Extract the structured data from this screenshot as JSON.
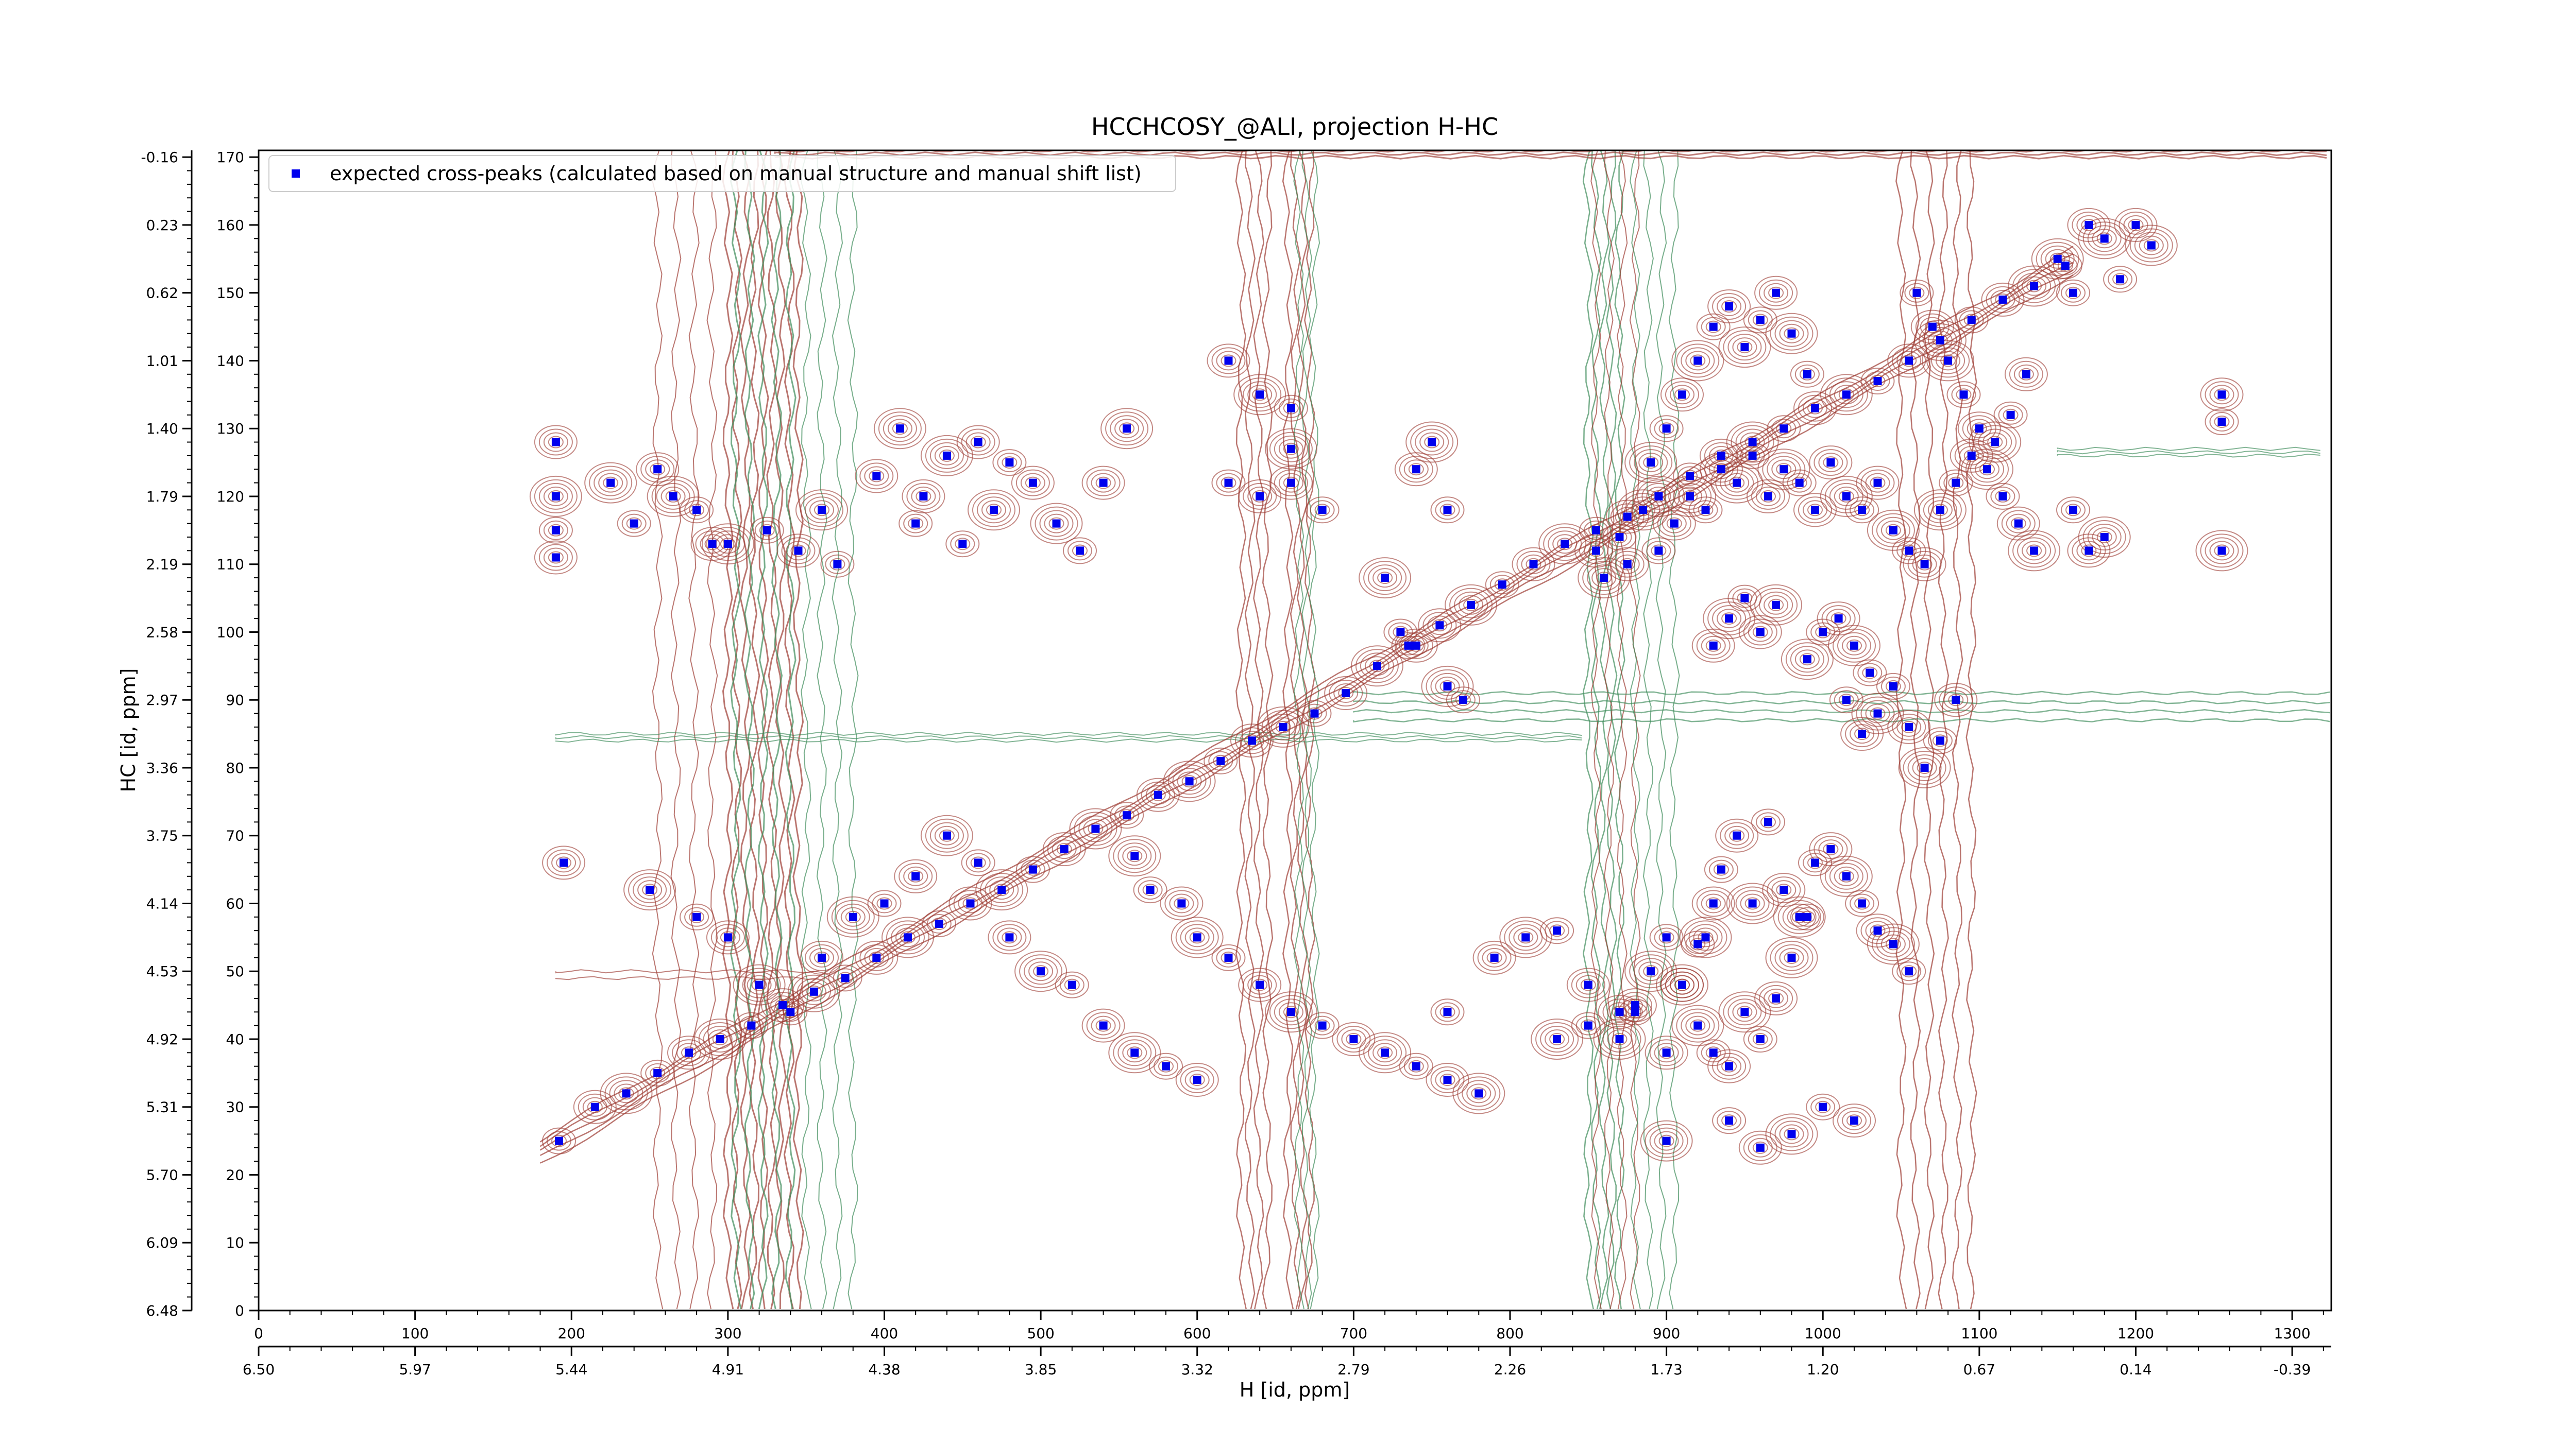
{
  "chart_data": {
    "type": "scatter",
    "title": "HCCHCOSY_@ALI, projection H-HC",
    "xlabel": "H [id, ppm]",
    "ylabel": "HC [id, ppm]",
    "xlim": [
      0,
      1325
    ],
    "ylim": [
      0,
      171
    ],
    "x_ticks": [
      "0",
      "100",
      "200",
      "300",
      "400",
      "500",
      "600",
      "700",
      "800",
      "900",
      "1000",
      "1100",
      "1200",
      "1300"
    ],
    "x_ppm_ticks": [
      "6.50",
      "5.97",
      "5.44",
      "4.91",
      "4.38",
      "3.85",
      "3.32",
      "2.79",
      "2.26",
      "1.73",
      "1.20",
      "0.67",
      "0.14",
      "-0.39"
    ],
    "y_ticks": [
      "0",
      "10",
      "20",
      "30",
      "40",
      "50",
      "60",
      "70",
      "80",
      "90",
      "100",
      "110",
      "120",
      "130",
      "140",
      "150",
      "160",
      "170"
    ],
    "y_ppm_ticks": [
      "6.48",
      "6.09",
      "5.70",
      "5.31",
      "4.92",
      "4.53",
      "4.14",
      "3.75",
      "3.36",
      "2.97",
      "2.58",
      "2.19",
      "1.79",
      "1.40",
      "1.01",
      "0.62",
      "0.23",
      "-0.16"
    ],
    "legend": {
      "placement": "top-left",
      "entries": [
        "expected cross-peaks (calculated based on manual structure and manual shift list)"
      ]
    },
    "grid": false,
    "colors": {
      "peaks": "#0000ee",
      "positive_contours": "#9c3a32",
      "negative_contours": "#3d8c5a"
    },
    "series": [
      {
        "name": "expected cross-peaks (calculated based on manual structure and manual shift list)",
        "points": [
          [
            192,
            25
          ],
          [
            215,
            30
          ],
          [
            235,
            32
          ],
          [
            255,
            35
          ],
          [
            275,
            38
          ],
          [
            295,
            40
          ],
          [
            315,
            42
          ],
          [
            335,
            45
          ],
          [
            355,
            47
          ],
          [
            375,
            49
          ],
          [
            395,
            52
          ],
          [
            415,
            55
          ],
          [
            435,
            57
          ],
          [
            455,
            60
          ],
          [
            475,
            62
          ],
          [
            495,
            65
          ],
          [
            515,
            68
          ],
          [
            535,
            71
          ],
          [
            555,
            73
          ],
          [
            575,
            76
          ],
          [
            595,
            78
          ],
          [
            615,
            81
          ],
          [
            635,
            84
          ],
          [
            655,
            86
          ],
          [
            675,
            88
          ],
          [
            695,
            91
          ],
          [
            715,
            95
          ],
          [
            735,
            98
          ],
          [
            755,
            101
          ],
          [
            775,
            104
          ],
          [
            795,
            107
          ],
          [
            815,
            110
          ],
          [
            835,
            113
          ],
          [
            855,
            115
          ],
          [
            875,
            117
          ],
          [
            895,
            120
          ],
          [
            915,
            123
          ],
          [
            935,
            126
          ],
          [
            955,
            128
          ],
          [
            975,
            130
          ],
          [
            995,
            133
          ],
          [
            1015,
            135
          ],
          [
            1035,
            137
          ],
          [
            1055,
            140
          ],
          [
            1075,
            143
          ],
          [
            1095,
            146
          ],
          [
            1115,
            149
          ],
          [
            1135,
            151
          ],
          [
            1155,
            154
          ],
          [
            190,
            128
          ],
          [
            190,
            120
          ],
          [
            190,
            115
          ],
          [
            190,
            111
          ],
          [
            225,
            122
          ],
          [
            240,
            116
          ],
          [
            255,
            124
          ],
          [
            265,
            120
          ],
          [
            280,
            118
          ],
          [
            290,
            113
          ],
          [
            300,
            113
          ],
          [
            325,
            115
          ],
          [
            345,
            112
          ],
          [
            360,
            118
          ],
          [
            370,
            110
          ],
          [
            395,
            123
          ],
          [
            410,
            130
          ],
          [
            420,
            116
          ],
          [
            425,
            120
          ],
          [
            440,
            126
          ],
          [
            450,
            113
          ],
          [
            460,
            128
          ],
          [
            470,
            118
          ],
          [
            480,
            125
          ],
          [
            495,
            122
          ],
          [
            510,
            116
          ],
          [
            525,
            112
          ],
          [
            540,
            122
          ],
          [
            555,
            130
          ],
          [
            620,
            122
          ],
          [
            640,
            120
          ],
          [
            660,
            127
          ],
          [
            680,
            118
          ],
          [
            620,
            140
          ],
          [
            640,
            135
          ],
          [
            660,
            133
          ],
          [
            740,
            124
          ],
          [
            750,
            128
          ],
          [
            760,
            118
          ],
          [
            660,
            122
          ],
          [
            720,
            108
          ],
          [
            730,
            100
          ],
          [
            740,
            98
          ],
          [
            760,
            92
          ],
          [
            770,
            90
          ],
          [
            195,
            66
          ],
          [
            250,
            62
          ],
          [
            280,
            58
          ],
          [
            300,
            55
          ],
          [
            320,
            48
          ],
          [
            340,
            44
          ],
          [
            360,
            52
          ],
          [
            380,
            58
          ],
          [
            400,
            60
          ],
          [
            420,
            64
          ],
          [
            440,
            70
          ],
          [
            460,
            66
          ],
          [
            480,
            55
          ],
          [
            500,
            50
          ],
          [
            520,
            48
          ],
          [
            540,
            42
          ],
          [
            560,
            38
          ],
          [
            580,
            36
          ],
          [
            600,
            34
          ],
          [
            560,
            67
          ],
          [
            570,
            62
          ],
          [
            590,
            60
          ],
          [
            600,
            55
          ],
          [
            620,
            52
          ],
          [
            640,
            48
          ],
          [
            660,
            44
          ],
          [
            680,
            42
          ],
          [
            700,
            40
          ],
          [
            720,
            38
          ],
          [
            740,
            36
          ],
          [
            760,
            34
          ],
          [
            780,
            32
          ],
          [
            760,
            44
          ],
          [
            790,
            52
          ],
          [
            810,
            55
          ],
          [
            830,
            56
          ],
          [
            850,
            48
          ],
          [
            870,
            40
          ],
          [
            880,
            44
          ],
          [
            900,
            38
          ],
          [
            910,
            48
          ],
          [
            920,
            54
          ],
          [
            930,
            60
          ],
          [
            830,
            40
          ],
          [
            850,
            42
          ],
          [
            870,
            44
          ],
          [
            900,
            25
          ],
          [
            940,
            28
          ],
          [
            960,
            24
          ],
          [
            980,
            26
          ],
          [
            1000,
            30
          ],
          [
            1020,
            28
          ],
          [
            925,
            55
          ],
          [
            935,
            65
          ],
          [
            945,
            70
          ],
          [
            955,
            60
          ],
          [
            965,
            72
          ],
          [
            975,
            62
          ],
          [
            985,
            58
          ],
          [
            995,
            66
          ],
          [
            1005,
            68
          ],
          [
            1015,
            64
          ],
          [
            1025,
            60
          ],
          [
            1035,
            56
          ],
          [
            1045,
            54
          ],
          [
            1055,
            50
          ],
          [
            880,
            45
          ],
          [
            890,
            50
          ],
          [
            900,
            55
          ],
          [
            910,
            48
          ],
          [
            920,
            42
          ],
          [
            930,
            38
          ],
          [
            940,
            36
          ],
          [
            950,
            44
          ],
          [
            960,
            40
          ],
          [
            970,
            46
          ],
          [
            980,
            52
          ],
          [
            990,
            58
          ],
          [
            855,
            112
          ],
          [
            860,
            108
          ],
          [
            870,
            114
          ],
          [
            875,
            110
          ],
          [
            885,
            118
          ],
          [
            895,
            112
          ],
          [
            905,
            116
          ],
          [
            915,
            120
          ],
          [
            925,
            118
          ],
          [
            935,
            124
          ],
          [
            945,
            122
          ],
          [
            955,
            126
          ],
          [
            965,
            120
          ],
          [
            975,
            124
          ],
          [
            985,
            122
          ],
          [
            995,
            118
          ],
          [
            890,
            125
          ],
          [
            900,
            130
          ],
          [
            910,
            135
          ],
          [
            920,
            140
          ],
          [
            930,
            145
          ],
          [
            940,
            148
          ],
          [
            950,
            142
          ],
          [
            960,
            146
          ],
          [
            970,
            150
          ],
          [
            980,
            144
          ],
          [
            990,
            138
          ],
          [
            1005,
            125
          ],
          [
            1015,
            120
          ],
          [
            1025,
            118
          ],
          [
            1035,
            122
          ],
          [
            1045,
            115
          ],
          [
            1055,
            112
          ],
          [
            1065,
            110
          ],
          [
            1075,
            118
          ],
          [
            1085,
            122
          ],
          [
            1095,
            126
          ],
          [
            1105,
            124
          ],
          [
            1115,
            120
          ],
          [
            1125,
            116
          ],
          [
            1135,
            112
          ],
          [
            1060,
            150
          ],
          [
            1070,
            145
          ],
          [
            1080,
            140
          ],
          [
            1090,
            135
          ],
          [
            1100,
            130
          ],
          [
            1110,
            128
          ],
          [
            1120,
            132
          ],
          [
            1130,
            138
          ],
          [
            1150,
            155
          ],
          [
            1160,
            150
          ],
          [
            1170,
            160
          ],
          [
            1180,
            158
          ],
          [
            1190,
            152
          ],
          [
            1200,
            160
          ],
          [
            1210,
            157
          ],
          [
            1255,
            131
          ],
          [
            1255,
            135
          ],
          [
            1255,
            112
          ],
          [
            1160,
            118
          ],
          [
            1170,
            112
          ],
          [
            1180,
            114
          ],
          [
            1015,
            90
          ],
          [
            1025,
            85
          ],
          [
            1035,
            88
          ],
          [
            1045,
            92
          ],
          [
            1055,
            86
          ],
          [
            1065,
            80
          ],
          [
            1075,
            84
          ],
          [
            1085,
            90
          ],
          [
            990,
            96
          ],
          [
            1000,
            100
          ],
          [
            1010,
            102
          ],
          [
            1020,
            98
          ],
          [
            1030,
            94
          ],
          [
            930,
            98
          ],
          [
            940,
            102
          ],
          [
            950,
            105
          ],
          [
            960,
            100
          ],
          [
            970,
            104
          ]
        ]
      }
    ]
  }
}
